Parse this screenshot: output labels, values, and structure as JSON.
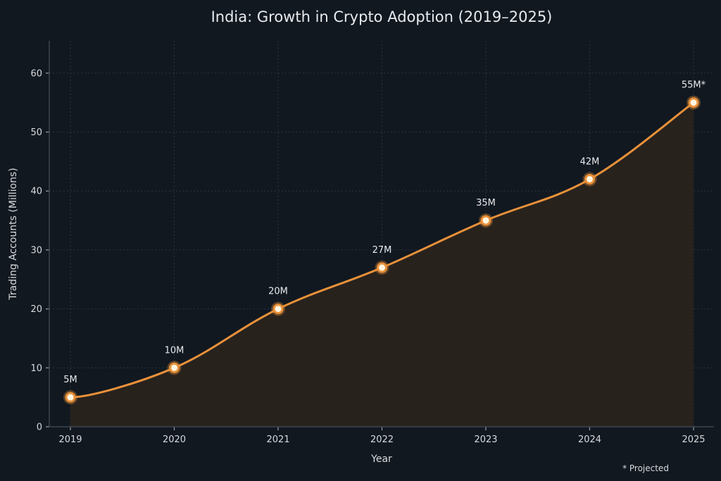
{
  "chart_data": {
    "type": "line",
    "title": "India: Growth in Crypto Adoption (2019–2025)",
    "xlabel": "Year",
    "ylabel": "Trading Accounts (Millions)",
    "x": [
      "2019",
      "2020",
      "2021",
      "2022",
      "2023",
      "2024",
      "2025"
    ],
    "series": [
      {
        "name": "Trading Accounts",
        "values": [
          5,
          10,
          20,
          27,
          35,
          42,
          55
        ],
        "labels": [
          "5M",
          "10M",
          "20M",
          "27M",
          "35M",
          "42M",
          "55M*"
        ],
        "color": "#e8913a",
        "fill": "area"
      }
    ],
    "ylim": [
      0,
      65
    ],
    "yticks": [
      0,
      10,
      20,
      30,
      40,
      50,
      60
    ],
    "grid": true,
    "legend": "none",
    "annotations": [
      "* Projected"
    ]
  },
  "colors": {
    "background": "#111820",
    "line": "#e8913a",
    "area": "#2a231d",
    "marker_core": "#fff6e0"
  }
}
